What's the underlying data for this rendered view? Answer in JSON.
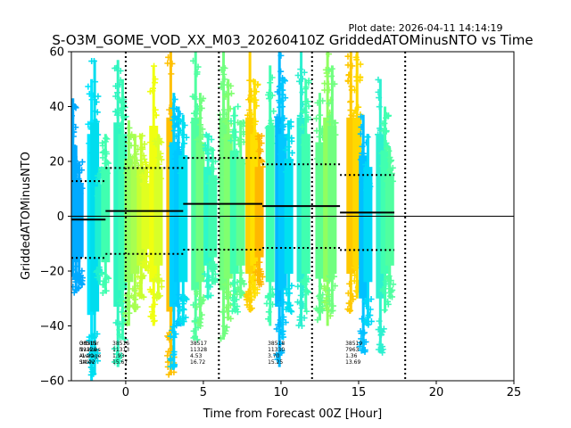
{
  "chart_data": {
    "type": "scatter",
    "plot_date": "Plot date: 2026-04-11 14:14:19",
    "title": "S-O3M_GOME_VOD_XX_M03_20260410Z GriddedATOMinusNTO vs Time",
    "xlabel": "Time from Forecast 00Z [Hour]",
    "ylabel": "GriddedATOMinusNTO",
    "xlim": [
      -3.5,
      25
    ],
    "ylim": [
      -60,
      60
    ],
    "xticks": [
      0,
      5,
      10,
      15,
      20,
      25
    ],
    "yticks": [
      -60,
      -40,
      -20,
      0,
      20,
      40,
      60
    ],
    "vlines": [
      0,
      6,
      12,
      18
    ],
    "zero_line": 0,
    "orbit_segments": [
      {
        "x0": -3.5,
        "x1": -1.3,
        "mean": -1.2,
        "upper": 12.82,
        "lower": -15.22
      },
      {
        "x0": -1.3,
        "x1": 3.7,
        "mean": 1.93,
        "upper": 17.6,
        "lower": -13.74
      },
      {
        "x0": 3.7,
        "x1": 8.8,
        "mean": 4.53,
        "upper": 21.25,
        "lower": -12.19
      },
      {
        "x0": 8.8,
        "x1": 13.8,
        "mean": 3.7,
        "upper": 18.95,
        "lower": -11.55
      },
      {
        "x0": 13.8,
        "x1": 17.3,
        "mean": 1.36,
        "upper": 15.05,
        "lower": -12.33
      }
    ],
    "scatter_columns": [
      {
        "x": -3.4,
        "min": -22,
        "max": 43,
        "color": "#00aaff"
      },
      {
        "x": -3.2,
        "min": -28,
        "max": 22,
        "color": "#00aaff"
      },
      {
        "x": -3.0,
        "min": -25,
        "max": 20,
        "color": "#00aaff"
      },
      {
        "x": -2.2,
        "min": -60,
        "max": 50,
        "color": "#00e5ff"
      },
      {
        "x": -2.0,
        "min": -58,
        "max": 57,
        "color": "#00ddee"
      },
      {
        "x": -1.7,
        "min": -25,
        "max": 18,
        "color": "#1ef0d0"
      },
      {
        "x": -1.3,
        "min": -28,
        "max": 30,
        "color": "#40ffb0"
      },
      {
        "x": -0.5,
        "min": -55,
        "max": 57,
        "color": "#2ff5c0"
      },
      {
        "x": -0.2,
        "min": -45,
        "max": 50,
        "color": "#3afcb5"
      },
      {
        "x": 0.2,
        "min": -40,
        "max": 35,
        "color": "#90ff60"
      },
      {
        "x": 0.6,
        "min": -35,
        "max": 30,
        "color": "#a8ff50"
      },
      {
        "x": 1.0,
        "min": -30,
        "max": 30,
        "color": "#c8ff30"
      },
      {
        "x": 1.3,
        "min": -20,
        "max": 20,
        "color": "#e0ff20"
      },
      {
        "x": 1.8,
        "min": -40,
        "max": 55,
        "color": "#f0ff10"
      },
      {
        "x": 2.1,
        "min": -30,
        "max": 30,
        "color": "#d8ff28"
      },
      {
        "x": 2.9,
        "min": -58,
        "max": 60,
        "color": "#ffc000"
      },
      {
        "x": 3.1,
        "min": -55,
        "max": 45,
        "color": "#00d0ff"
      },
      {
        "x": 3.4,
        "min": -40,
        "max": 40,
        "color": "#00c8ff"
      },
      {
        "x": 3.7,
        "min": -40,
        "max": 37,
        "color": "#00e0f0"
      },
      {
        "x": 4.5,
        "min": -45,
        "max": 60,
        "color": "#50ffa0"
      },
      {
        "x": 4.8,
        "min": -40,
        "max": 45,
        "color": "#70ff80"
      },
      {
        "x": 5.3,
        "min": -30,
        "max": 30,
        "color": "#2ef8c8"
      },
      {
        "x": 5.6,
        "min": -25,
        "max": 25,
        "color": "#40fcb0"
      },
      {
        "x": 6.3,
        "min": -45,
        "max": 60,
        "color": "#70ff80"
      },
      {
        "x": 6.6,
        "min": -38,
        "max": 50,
        "color": "#80ff70"
      },
      {
        "x": 7.0,
        "min": -35,
        "max": 40,
        "color": "#40ffb0"
      },
      {
        "x": 7.4,
        "min": -30,
        "max": 35,
        "color": "#60ff90"
      },
      {
        "x": 8.0,
        "min": -35,
        "max": 60,
        "color": "#ffd000"
      },
      {
        "x": 8.3,
        "min": -30,
        "max": 50,
        "color": "#ffe000"
      },
      {
        "x": 8.6,
        "min": -25,
        "max": 30,
        "color": "#ffb800"
      },
      {
        "x": 9.3,
        "min": -40,
        "max": 55,
        "color": "#40ffb0"
      },
      {
        "x": 9.9,
        "min": -55,
        "max": 60,
        "color": "#00b8ff"
      },
      {
        "x": 10.1,
        "min": -45,
        "max": 50,
        "color": "#00c8ff"
      },
      {
        "x": 10.5,
        "min": -35,
        "max": 35,
        "color": "#00e0f0"
      },
      {
        "x": 11.3,
        "min": -40,
        "max": 60,
        "color": "#2cf0d0"
      },
      {
        "x": 11.6,
        "min": -35,
        "max": 50,
        "color": "#40ffb0"
      },
      {
        "x": 12.5,
        "min": -38,
        "max": 45,
        "color": "#60ff90"
      },
      {
        "x": 13.0,
        "min": -40,
        "max": 60,
        "color": "#90ff60"
      },
      {
        "x": 13.3,
        "min": -35,
        "max": 55,
        "color": "#70ff80"
      },
      {
        "x": 14.5,
        "min": -35,
        "max": 60,
        "color": "#ffc800"
      },
      {
        "x": 14.9,
        "min": -30,
        "max": 60,
        "color": "#ffd800"
      },
      {
        "x": 15.3,
        "min": -50,
        "max": 37,
        "color": "#00c0ff"
      },
      {
        "x": 15.6,
        "min": -40,
        "max": 30,
        "color": "#00d8f8"
      },
      {
        "x": 16.4,
        "min": -50,
        "max": 50,
        "color": "#2ef0d0"
      },
      {
        "x": 16.7,
        "min": -35,
        "max": 40,
        "color": "#40ffb0"
      },
      {
        "x": 17.0,
        "min": -30,
        "max": 25,
        "color": "#50ffa0"
      }
    ],
    "stats_header": [
      "OrbitNr",
      "Nvalues",
      "Average",
      "Stdev"
    ],
    "stats_blocks": [
      {
        "x": -3.3,
        "values": [
          "38515",
          "11320",
          "-1.20",
          "14.02"
        ]
      },
      {
        "x": -1.2,
        "values": [
          "38516",
          "11313",
          "1.93",
          "15.67"
        ]
      },
      {
        "x": 3.8,
        "values": [
          "38517",
          "11328",
          "4.53",
          "16.72"
        ]
      },
      {
        "x": 8.8,
        "values": [
          "38518",
          "11330",
          "3.70",
          "15.25"
        ]
      },
      {
        "x": 13.8,
        "values": [
          "38519",
          "7963",
          "1.36",
          "13.69"
        ]
      }
    ]
  }
}
